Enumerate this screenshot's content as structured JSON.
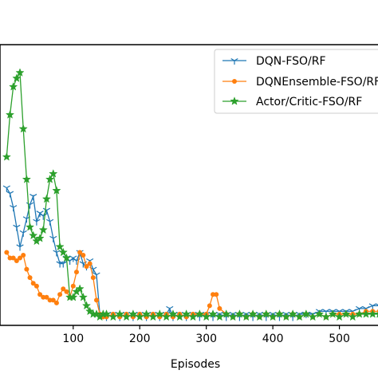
{
  "chart_data": {
    "type": "line",
    "xlabel": "Episodes",
    "xlim": [
      -10,
      570
    ],
    "ylim": [
      0,
      100
    ],
    "grid": false,
    "legend_placement": "top-right",
    "x_ticks": [
      100,
      200,
      300,
      400,
      500
    ],
    "series": [
      {
        "name": "DQN-FSO/RF",
        "color": "#1f77b4",
        "marker": "tri-down",
        "x": [
          0,
          5,
          10,
          15,
          20,
          25,
          30,
          35,
          40,
          45,
          50,
          55,
          60,
          65,
          70,
          75,
          80,
          85,
          90,
          95,
          100,
          105,
          110,
          115,
          120,
          125,
          130,
          135,
          140,
          145,
          150,
          160,
          170,
          180,
          190,
          200,
          210,
          220,
          230,
          240,
          245,
          250,
          260,
          270,
          280,
          290,
          300,
          310,
          320,
          330,
          340,
          350,
          360,
          370,
          380,
          390,
          400,
          410,
          420,
          430,
          440,
          450,
          460,
          470,
          480,
          490,
          500,
          510,
          520,
          530,
          540,
          550,
          560,
          570
        ],
        "y": [
          49,
          47,
          42,
          35,
          28,
          33,
          38,
          43,
          46,
          37,
          40,
          39,
          41,
          37,
          31,
          26,
          22,
          22,
          24,
          23,
          24,
          23,
          26,
          22,
          21,
          23,
          20,
          18,
          4,
          4,
          3,
          4,
          3,
          4,
          3,
          4,
          3,
          4,
          3,
          4,
          6,
          3,
          4,
          3,
          4,
          3,
          4,
          3,
          4,
          3,
          4,
          3,
          4,
          3,
          4,
          3,
          4,
          3,
          4,
          3,
          4,
          4,
          4,
          5,
          5,
          5,
          5,
          5,
          5,
          6,
          6,
          7,
          7,
          7
        ]
      },
      {
        "name": "DQNEnsemble-FSO/RF",
        "color": "#ff7f0e",
        "marker": "circle",
        "x": [
          0,
          5,
          10,
          15,
          20,
          25,
          30,
          35,
          40,
          45,
          50,
          55,
          60,
          65,
          70,
          75,
          80,
          85,
          90,
          95,
          100,
          105,
          110,
          115,
          120,
          125,
          130,
          135,
          140,
          145,
          150,
          160,
          170,
          180,
          190,
          200,
          210,
          220,
          230,
          240,
          250,
          260,
          270,
          280,
          290,
          300,
          305,
          310,
          315,
          320,
          330,
          340,
          350,
          360,
          370,
          380,
          390,
          400,
          410,
          420,
          430,
          440,
          450,
          460,
          470,
          480,
          490,
          500,
          510,
          520,
          530,
          540,
          550,
          560,
          570
        ],
        "y": [
          26,
          24,
          24,
          23,
          24,
          25,
          20,
          17,
          15,
          14,
          11,
          10,
          10,
          9,
          9,
          8,
          11,
          13,
          12,
          10,
          14,
          19,
          26,
          25,
          21,
          22,
          17,
          9,
          4,
          3,
          3,
          4,
          3,
          4,
          3,
          4,
          3,
          4,
          3,
          4,
          3,
          4,
          3,
          4,
          4,
          4,
          7,
          11,
          11,
          6,
          4,
          3,
          4,
          3,
          4,
          3,
          4,
          3,
          4,
          3,
          4,
          3,
          4,
          3,
          4,
          3,
          4,
          4,
          4,
          4,
          4,
          5,
          5,
          5,
          5
        ]
      },
      {
        "name": "Actor/Critic-FSO/RF",
        "color": "#2ca02c",
        "marker": "star",
        "x": [
          0,
          5,
          10,
          15,
          20,
          25,
          30,
          35,
          40,
          45,
          50,
          55,
          60,
          65,
          70,
          75,
          80,
          85,
          90,
          95,
          100,
          105,
          110,
          115,
          120,
          125,
          130,
          135,
          140,
          145,
          150,
          160,
          170,
          180,
          190,
          200,
          210,
          220,
          230,
          240,
          250,
          260,
          270,
          280,
          290,
          300,
          310,
          320,
          330,
          340,
          350,
          360,
          370,
          380,
          390,
          400,
          410,
          420,
          430,
          440,
          450,
          460,
          470,
          480,
          490,
          500,
          510,
          520,
          530,
          540,
          550,
          560,
          570
        ],
        "y": [
          60,
          75,
          85,
          88,
          90,
          70,
          52,
          35,
          32,
          30,
          31,
          34,
          45,
          52,
          54,
          48,
          28,
          26,
          24,
          10,
          10,
          12,
          13,
          10,
          7,
          5,
          4,
          4,
          3,
          4,
          4,
          3,
          4,
          3,
          4,
          3,
          4,
          3,
          4,
          3,
          4,
          3,
          4,
          3,
          4,
          3,
          4,
          3,
          4,
          3,
          4,
          3,
          4,
          3,
          4,
          3,
          4,
          3,
          4,
          3,
          4,
          3,
          4,
          3,
          4,
          3,
          4,
          3,
          4,
          4,
          4,
          4,
          4
        ]
      }
    ]
  }
}
